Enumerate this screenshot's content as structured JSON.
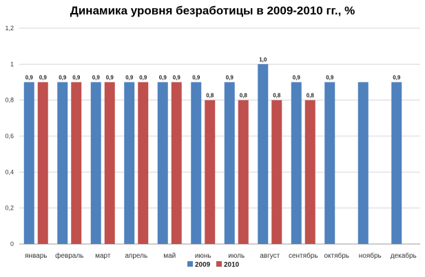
{
  "chart_data": {
    "type": "bar",
    "title": "Динамика уровня безработицы в 2009-2010 гг., %",
    "xlabel": "",
    "ylabel": "",
    "ylim": [
      0,
      1.2
    ],
    "y_ticks": [
      "0",
      "0,2",
      "0,4",
      "0,6",
      "0,8",
      "1",
      "1,2"
    ],
    "grid": true,
    "legend_position": "bottom",
    "categories": [
      "январь",
      "февраль",
      "март",
      "апрель",
      "май",
      "июнь",
      "июль",
      "август",
      "сентябрь",
      "октябрь",
      "ноябрь",
      "декабрь"
    ],
    "series": [
      {
        "name": "2009",
        "color": "#4F81BD",
        "values": [
          0.9,
          0.9,
          0.9,
          0.9,
          0.9,
          0.9,
          0.9,
          1.0,
          0.9,
          0.9,
          0.9,
          0.9
        ],
        "labels": [
          "0,9",
          "0,9",
          "0,9",
          "0,9",
          "0,9",
          "0,9",
          "0,9",
          "1,0",
          "0,9",
          "0,9",
          "",
          "0,9"
        ]
      },
      {
        "name": "2010",
        "color": "#C0504D",
        "values": [
          0.9,
          0.9,
          0.9,
          0.9,
          0.9,
          0.8,
          0.8,
          0.8,
          0.8,
          null,
          null,
          null
        ],
        "labels": [
          "0,9",
          "0,9",
          "0,9",
          "0,9",
          "0,9",
          "0,8",
          "0,8",
          "0,8",
          "0,8",
          "",
          "",
          ""
        ]
      }
    ]
  }
}
